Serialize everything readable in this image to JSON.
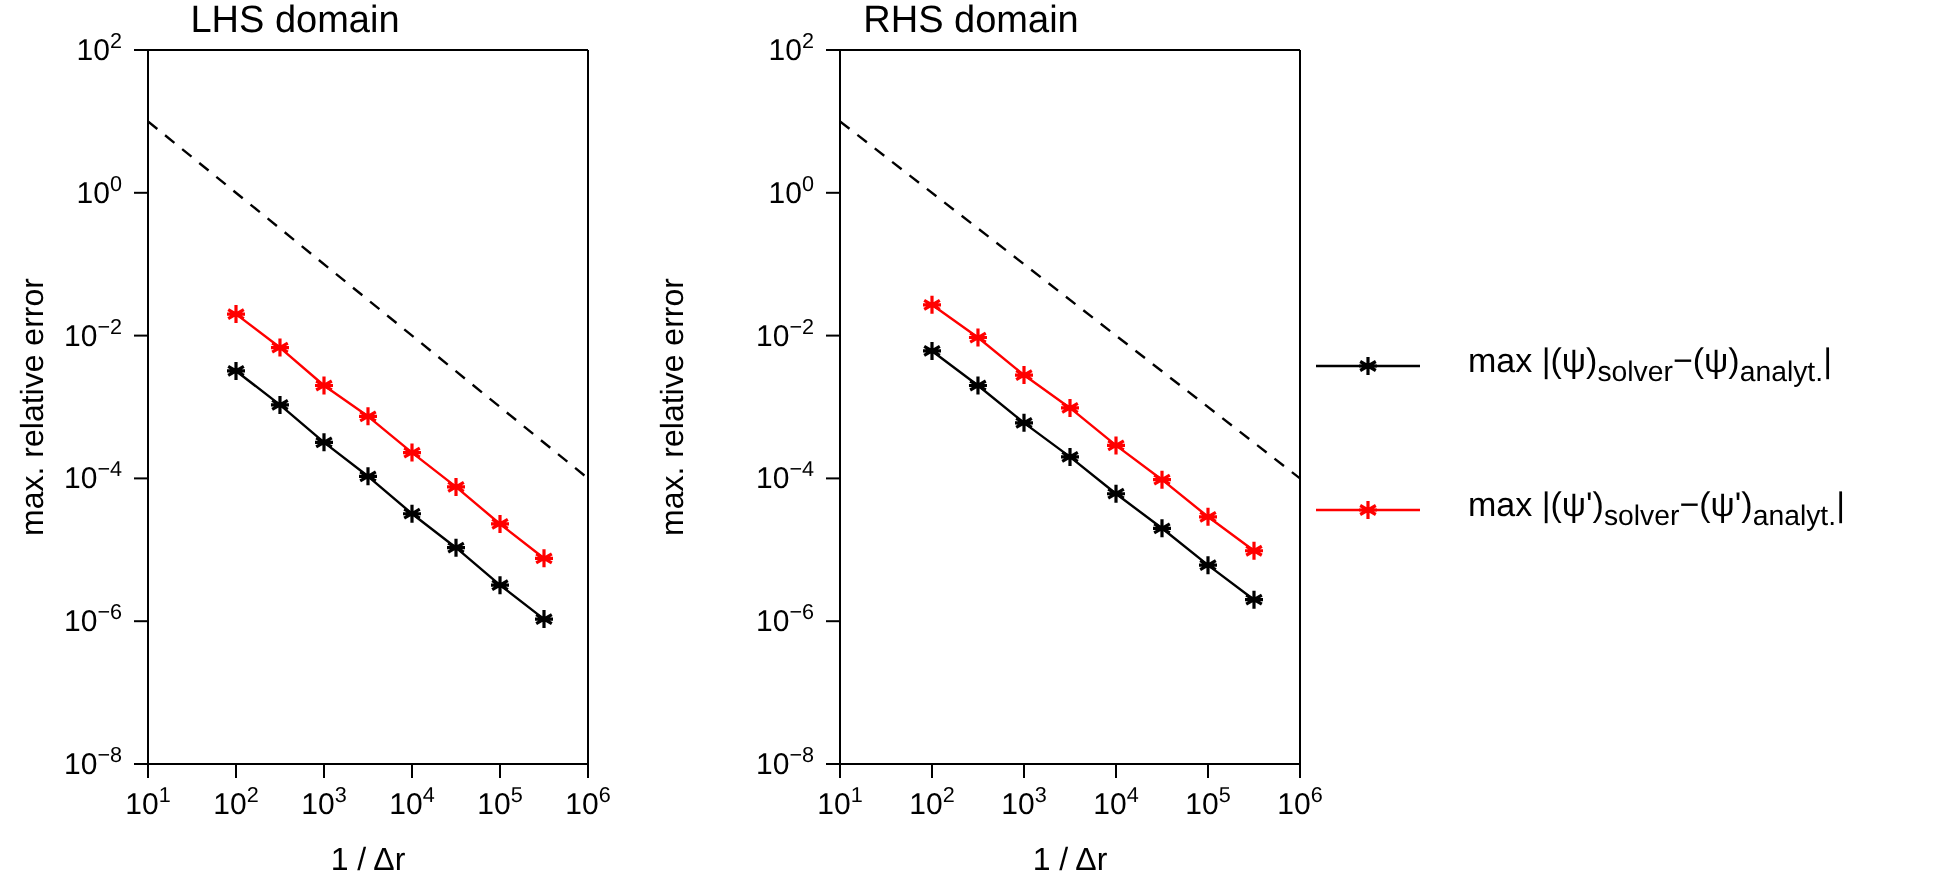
{
  "chart_data": [
    {
      "type": "line",
      "title": "LHS domain",
      "xlabel": "1 / Δr",
      "ylabel": "max. relative error",
      "log": "xy",
      "legend": false,
      "xlim": [
        10,
        1000000
      ],
      "ylim": [
        1e-08,
        100
      ],
      "xticks": [
        {
          "value": 10,
          "label": "10$^{1}$"
        },
        {
          "value": 100,
          "label": "10$^{2}$"
        },
        {
          "value": 1000,
          "label": "10$^{3}$"
        },
        {
          "value": 10000,
          "label": "10$^{4}$"
        },
        {
          "value": 100000,
          "label": "10$^{5}$"
        },
        {
          "value": 1000000,
          "label": "10$^{6}$"
        }
      ],
      "yticks": [
        {
          "value": 1e-08,
          "label": "10$^{−8}$"
        },
        {
          "value": 1e-06,
          "label": "10$^{−6}$"
        },
        {
          "value": 0.0001,
          "label": "10$^{−4}$"
        },
        {
          "value": 0.01,
          "label": "10$^{−2}$"
        },
        {
          "value": 1,
          "label": "10$^{0}$"
        },
        {
          "value": 100,
          "label": "10$^{2}$"
        }
      ],
      "series": [
        {
          "color": "#000000",
          "marker": "cross",
          "line_style": "solid",
          "x": [
            100,
            316,
            1000,
            3162,
            10000,
            31623,
            100000,
            316228
          ],
          "values": [
            0.0032,
            0.00107,
            0.00032,
            0.000107,
            3.2e-05,
            1.07e-05,
            3.2e-06,
            1.07e-06
          ]
        },
        {
          "color": "#ff0000",
          "marker": "cross",
          "line_style": "solid",
          "x": [
            100,
            316,
            1000,
            3162,
            10000,
            31623,
            100000,
            316228
          ],
          "values": [
            0.02,
            0.0068,
            0.002,
            0.00074,
            0.00023,
            7.6e-05,
            2.3e-05,
            7.6e-06
          ]
        },
        {
          "color": "#000000",
          "marker": "none",
          "line_style": "dashed",
          "x": [
            10,
            1000000
          ],
          "values": [
            10,
            0.0001
          ]
        }
      ]
    },
    {
      "type": "line",
      "title": "RHS domain",
      "xlabel": "1 / Δr",
      "ylabel": "max. relative error",
      "log": "xy",
      "legend": "right",
      "xlim": [
        10,
        1000000
      ],
      "ylim": [
        1e-08,
        100
      ],
      "xticks": [
        {
          "value": 10,
          "label": "10$^{1}$"
        },
        {
          "value": 100,
          "label": "10$^{2}$"
        },
        {
          "value": 1000,
          "label": "10$^{3}$"
        },
        {
          "value": 10000,
          "label": "10$^{4}$"
        },
        {
          "value": 100000,
          "label": "10$^{5}$"
        },
        {
          "value": 1000000,
          "label": "10$^{6}$"
        }
      ],
      "yticks": [
        {
          "value": 1e-08,
          "label": "10$^{−8}$"
        },
        {
          "value": 1e-06,
          "label": "10$^{−6}$"
        },
        {
          "value": 0.0001,
          "label": "10$^{−4}$"
        },
        {
          "value": 0.01,
          "label": "10$^{−2}$"
        },
        {
          "value": 1,
          "label": "10$^{0}$"
        },
        {
          "value": 100,
          "label": "10$^{2}$"
        }
      ],
      "series": [
        {
          "name": "max |(ψ)$_{solver}$−(ψ)$_{analyt.}$|",
          "color": "#000000",
          "marker": "cross",
          "line_style": "solid",
          "x": [
            100,
            316,
            1000,
            3162,
            10000,
            31623,
            100000,
            316228
          ],
          "values": [
            0.0061,
            0.002,
            0.0006,
            0.0002,
            6.1e-05,
            2e-05,
            6.1e-06,
            2e-06
          ]
        },
        {
          "name": "max |(ψ')$_{solver}$−(ψ')$_{analyt.}$|",
          "color": "#ff0000",
          "marker": "cross",
          "line_style": "solid",
          "x": [
            100,
            316,
            1000,
            3162,
            10000,
            31623,
            100000,
            316228
          ],
          "values": [
            0.027,
            0.0094,
            0.0028,
            0.00097,
            0.00029,
            9.6e-05,
            2.9e-05,
            9.7e-06
          ]
        },
        {
          "color": "#000000",
          "marker": "none",
          "line_style": "dashed",
          "x": [
            10,
            1000000
          ],
          "values": [
            10,
            0.0001
          ]
        }
      ]
    }
  ]
}
